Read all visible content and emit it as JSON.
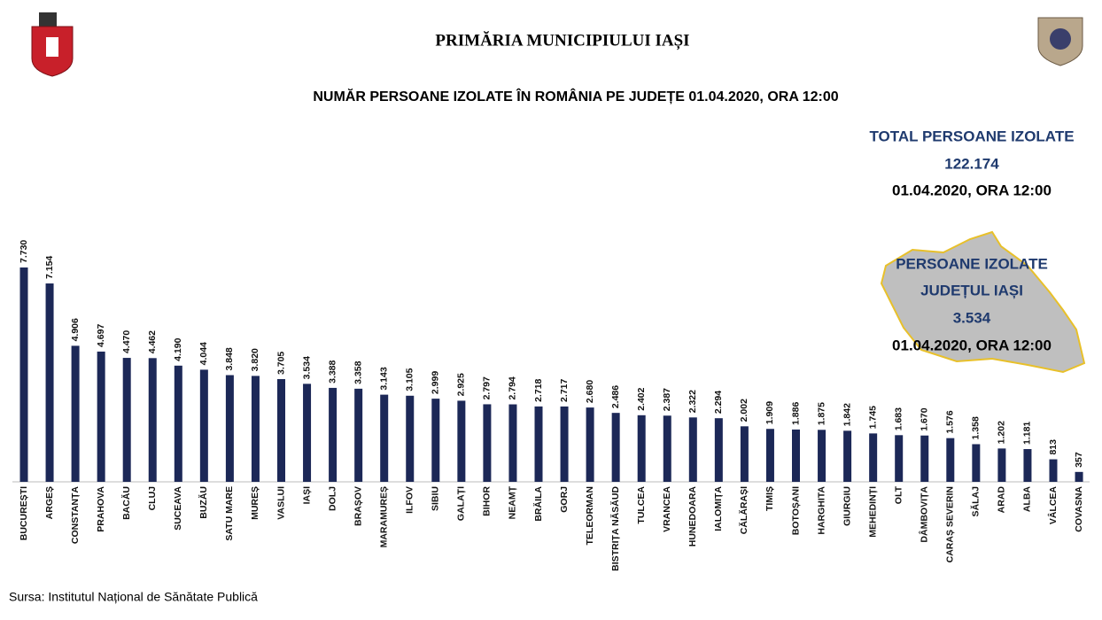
{
  "chart_data": {
    "type": "bar",
    "title": "PRIMĂRIA MUNICIPIULUI IAȘI",
    "subtitle": "NUMĂR PERSOANE IZOLATE ÎN ROMÂNIA PE JUDEȚE 01.04.2020, ORA 12:00",
    "color": "#1c2857",
    "categories": [
      "BUCUREȘTI",
      "ARGEȘ",
      "CONSTANȚA",
      "PRAHOVA",
      "BACĂU",
      "CLUJ",
      "SUCEAVA",
      "BUZĂU",
      "SATU MARE",
      "MUREȘ",
      "VASLUI",
      "IAȘI",
      "DOLJ",
      "BRAȘOV",
      "MARAMUREȘ",
      "ILFOV",
      "SIBIU",
      "GALAȚI",
      "BIHOR",
      "NEAMȚ",
      "BRĂILA",
      "GORJ",
      "TELEORMAN",
      "BISTRIȚA NĂSĂUD",
      "TULCEA",
      "VRANCEA",
      "HUNEDOARA",
      "IALOMIȚA",
      "CĂLĂRAȘI",
      "TIMIȘ",
      "BOTOȘANI",
      "HARGHITA",
      "GIURGIU",
      "MEHEDINȚI",
      "OLT",
      "DÂMBOVIȚA",
      "CARAȘ SEVERIN",
      "SĂLAJ",
      "ARAD",
      "ALBA",
      "VÂLCEA",
      "COVASNA"
    ],
    "values": [
      7730,
      7154,
      4906,
      4697,
      4470,
      4462,
      4190,
      4044,
      3848,
      3820,
      3705,
      3534,
      3388,
      3358,
      3143,
      3105,
      2999,
      2925,
      2797,
      2794,
      2718,
      2717,
      2680,
      2486,
      2402,
      2387,
      2322,
      2294,
      2002,
      1909,
      1886,
      1875,
      1842,
      1745,
      1683,
      1670,
      1576,
      1358,
      1202,
      1181,
      813,
      357
    ],
    "value_labels": [
      "7.730",
      "7.154",
      "4.906",
      "4.697",
      "4.470",
      "4.462",
      "4.190",
      "4.044",
      "3.848",
      "3.820",
      "3.705",
      "3.534",
      "3.388",
      "3.358",
      "3.143",
      "3.105",
      "2.999",
      "2.925",
      "2.797",
      "2.794",
      "2.718",
      "2.717",
      "2.680",
      "2.486",
      "2.402",
      "2.387",
      "2.322",
      "2.294",
      "2.002",
      "1.909",
      "1.886",
      "1.875",
      "1.842",
      "1.745",
      "1.683",
      "1.670",
      "1.576",
      "1.358",
      "1.202",
      "1.181",
      "813",
      "357"
    ],
    "total": {
      "label": "TOTAL PERSOANE IZOLATE",
      "value": "122.174",
      "date": "01.04.2020, ORA 12:00"
    },
    "county": {
      "label": "PERSOANE IZOLATE",
      "name": "JUDEȚUL IAȘI",
      "value": "3.534",
      "date": "01.04.2020, ORA 12:00"
    },
    "source": "Sursa: Institutul Național de Sănătate Publică"
  }
}
